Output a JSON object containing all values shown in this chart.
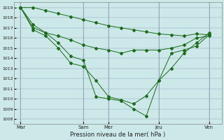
{
  "xlabel": "Pression niveau de la mer( hPa )",
  "ylim": [
    1007.5,
    1019.5
  ],
  "yticks": [
    1008,
    1009,
    1010,
    1011,
    1012,
    1013,
    1014,
    1015,
    1016,
    1017,
    1018,
    1019
  ],
  "day_labels": [
    "Mar",
    "Sam",
    "Mer",
    "Jeu",
    "Ven"
  ],
  "day_positions": [
    0,
    10,
    14,
    22,
    30
  ],
  "xlim": [
    -1,
    32
  ],
  "background_color": "#cce8e8",
  "grid_color": "#99aabb",
  "line_color": "#1a6b1a",
  "s1_x": [
    0,
    2,
    4,
    6,
    8,
    10,
    12,
    14,
    16,
    18,
    20,
    22,
    24,
    26,
    28,
    30
  ],
  "s1_y": [
    1019,
    1019,
    1018.7,
    1018.4,
    1018.1,
    1017.8,
    1017.5,
    1017.2,
    1017.0,
    1016.8,
    1016.6,
    1016.4,
    1016.3,
    1016.2,
    1016.4,
    1016.3
  ],
  "s2_x": [
    0,
    2,
    4,
    6,
    8,
    10,
    12,
    14,
    16,
    18,
    20,
    22,
    24,
    26,
    28,
    30
  ],
  "s2_y": [
    1019,
    1017.3,
    1016.5,
    1016.2,
    1015.8,
    1015.3,
    1015.0,
    1014.8,
    1014.5,
    1014.8,
    1014.8,
    1014.8,
    1015.0,
    1015.3,
    1016.0,
    1016.2
  ],
  "s3_x": [
    0,
    2,
    4,
    6,
    8,
    10,
    12,
    14,
    16,
    18,
    20,
    22,
    24,
    26,
    28,
    30
  ],
  "s3_y": [
    1019,
    1016.8,
    1016.2,
    1015.0,
    1013.5,
    1013.2,
    1011.8,
    1010.2,
    1009.9,
    1009.5,
    1010.3,
    1011.8,
    1013.0,
    1014.5,
    1015.5,
    1016.5
  ],
  "s4_x": [
    0,
    2,
    4,
    6,
    8,
    10,
    12,
    14,
    16,
    18,
    20,
    22,
    24,
    26,
    28,
    30
  ],
  "s4_y": [
    1019,
    1017.0,
    1016.5,
    1015.5,
    1014.2,
    1013.8,
    1010.2,
    1010.0,
    1009.8,
    1009.0,
    1008.3,
    1011.8,
    1014.5,
    1014.8,
    1015.2,
    1016.3
  ]
}
